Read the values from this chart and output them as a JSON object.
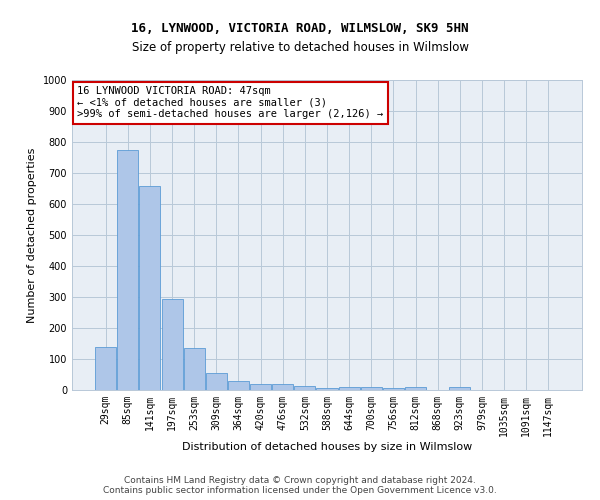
{
  "title": "16, LYNWOOD, VICTORIA ROAD, WILMSLOW, SK9 5HN",
  "subtitle": "Size of property relative to detached houses in Wilmslow",
  "xlabel": "Distribution of detached houses by size in Wilmslow",
  "ylabel": "Number of detached properties",
  "bar_color": "#aec6e8",
  "bar_edge_color": "#5b9bd5",
  "background_color": "#ffffff",
  "ax_background_color": "#e8eef5",
  "grid_color": "#b8c8d8",
  "categories": [
    "29sqm",
    "85sqm",
    "141sqm",
    "197sqm",
    "253sqm",
    "309sqm",
    "364sqm",
    "420sqm",
    "476sqm",
    "532sqm",
    "588sqm",
    "644sqm",
    "700sqm",
    "756sqm",
    "812sqm",
    "868sqm",
    "923sqm",
    "979sqm",
    "1035sqm",
    "1091sqm",
    "1147sqm"
  ],
  "values": [
    140,
    775,
    657,
    295,
    137,
    55,
    28,
    18,
    18,
    13,
    7,
    10,
    10,
    8,
    10,
    0,
    10,
    0,
    0,
    0,
    0
  ],
  "ylim": [
    0,
    1000
  ],
  "yticks": [
    0,
    100,
    200,
    300,
    400,
    500,
    600,
    700,
    800,
    900,
    1000
  ],
  "annotation_line1": "16 LYNWOOD VICTORIA ROAD: 47sqm",
  "annotation_line2": "← <1% of detached houses are smaller (3)",
  "annotation_line3": ">99% of semi-detached houses are larger (2,126) →",
  "annotation_box_color": "#ffffff",
  "annotation_box_edge_color": "#cc0000",
  "footer_line1": "Contains HM Land Registry data © Crown copyright and database right 2024.",
  "footer_line2": "Contains public sector information licensed under the Open Government Licence v3.0.",
  "title_fontsize": 9,
  "subtitle_fontsize": 8.5,
  "annotation_fontsize": 7.5,
  "tick_fontsize": 7,
  "xlabel_fontsize": 8,
  "ylabel_fontsize": 8,
  "footer_fontsize": 6.5
}
